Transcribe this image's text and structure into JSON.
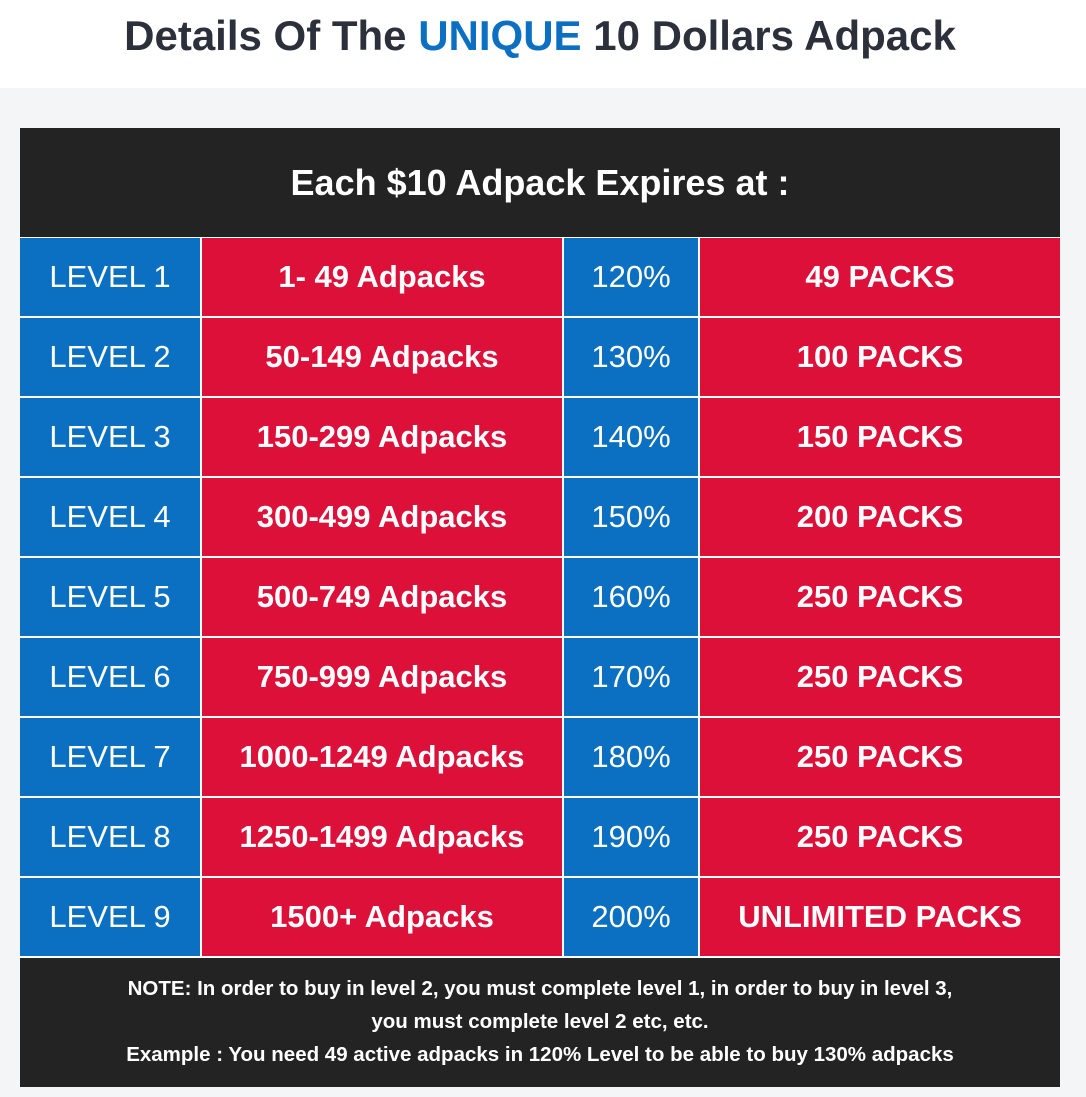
{
  "title": {
    "before": "Details Of The ",
    "highlight": "UNIQUE",
    "after": " 10 Dollars Adpack"
  },
  "colors": {
    "blue": "#0b6fc2",
    "red": "#dc1039",
    "dark": "#232323"
  },
  "table": {
    "header": "Each $10 Adpack Expires at :",
    "rows": [
      {
        "level": "LEVEL 1",
        "range": "1- 49 Adpacks",
        "percent": "120%",
        "packs": "49 PACKS"
      },
      {
        "level": "LEVEL 2",
        "range": "50-149 Adpacks",
        "percent": "130%",
        "packs": "100 PACKS"
      },
      {
        "level": "LEVEL 3",
        "range": "150-299 Adpacks",
        "percent": "140%",
        "packs": "150 PACKS"
      },
      {
        "level": "LEVEL 4",
        "range": "300-499 Adpacks",
        "percent": "150%",
        "packs": "200 PACKS"
      },
      {
        "level": "LEVEL 5",
        "range": "500-749 Adpacks",
        "percent": "160%",
        "packs": "250 PACKS"
      },
      {
        "level": "LEVEL 6",
        "range": "750-999 Adpacks",
        "percent": "170%",
        "packs": "250 PACKS"
      },
      {
        "level": "LEVEL 7",
        "range": "1000-1249 Adpacks",
        "percent": "180%",
        "packs": "250 PACKS"
      },
      {
        "level": "LEVEL 8",
        "range": "1250-1499 Adpacks",
        "percent": "190%",
        "packs": "250 PACKS"
      },
      {
        "level": "LEVEL 9",
        "range": "1500+ Adpacks",
        "percent": "200%",
        "packs": "UNLIMITED PACKS"
      }
    ],
    "note_line1": "NOTE: In order to buy in level 2, you must complete level 1, in order to buy in level 3,",
    "note_line2": "you must complete level 2 etc, etc.",
    "note_line3": "Example : You need 49 active adpacks in 120% Level to be able to buy 130% adpacks"
  }
}
